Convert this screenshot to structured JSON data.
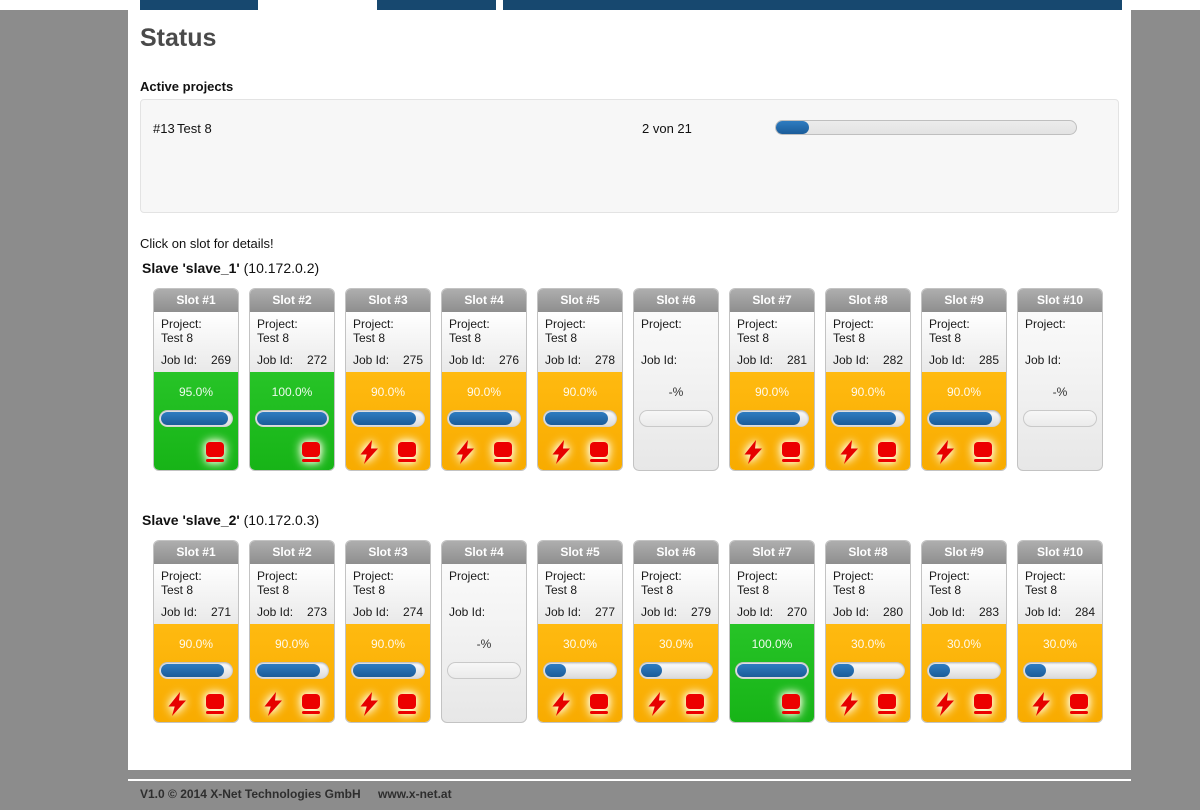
{
  "page": {
    "title": "Status"
  },
  "active_projects": {
    "heading": "Active projects",
    "row": {
      "id": "#13",
      "name": "Test 8",
      "count_label": "2 von 21",
      "progress_pct": 11
    }
  },
  "hint": "Click on slot for details!",
  "labels": {
    "project": "Project:",
    "job": "Job Id:"
  },
  "slaves": [
    {
      "name": "Slave 'slave_1'",
      "ip": "(10.172.0.2)",
      "slots": [
        {
          "label": "Slot #1",
          "project": "Test 8",
          "job_id": "269",
          "percent": "95.0%",
          "pct": 95,
          "state": "done"
        },
        {
          "label": "Slot #2",
          "project": "Test 8",
          "job_id": "272",
          "percent": "100.0%",
          "pct": 100,
          "state": "done"
        },
        {
          "label": "Slot #3",
          "project": "Test 8",
          "job_id": "275",
          "percent": "90.0%",
          "pct": 90,
          "state": "running"
        },
        {
          "label": "Slot #4",
          "project": "Test 8",
          "job_id": "276",
          "percent": "90.0%",
          "pct": 90,
          "state": "running"
        },
        {
          "label": "Slot #5",
          "project": "Test 8",
          "job_id": "278",
          "percent": "90.0%",
          "pct": 90,
          "state": "running"
        },
        {
          "label": "Slot #6",
          "project": "",
          "job_id": "",
          "percent": "-%",
          "pct": 0,
          "state": "empty"
        },
        {
          "label": "Slot #7",
          "project": "Test 8",
          "job_id": "281",
          "percent": "90.0%",
          "pct": 90,
          "state": "running"
        },
        {
          "label": "Slot #8",
          "project": "Test 8",
          "job_id": "282",
          "percent": "90.0%",
          "pct": 90,
          "state": "running"
        },
        {
          "label": "Slot #9",
          "project": "Test 8",
          "job_id": "285",
          "percent": "90.0%",
          "pct": 90,
          "state": "running"
        },
        {
          "label": "Slot #10",
          "project": "",
          "job_id": "",
          "percent": "-%",
          "pct": 0,
          "state": "empty"
        }
      ]
    },
    {
      "name": "Slave 'slave_2'",
      "ip": "(10.172.0.3)",
      "slots": [
        {
          "label": "Slot #1",
          "project": "Test 8",
          "job_id": "271",
          "percent": "90.0%",
          "pct": 90,
          "state": "running"
        },
        {
          "label": "Slot #2",
          "project": "Test 8",
          "job_id": "273",
          "percent": "90.0%",
          "pct": 90,
          "state": "running"
        },
        {
          "label": "Slot #3",
          "project": "Test 8",
          "job_id": "274",
          "percent": "90.0%",
          "pct": 90,
          "state": "running"
        },
        {
          "label": "Slot #4",
          "project": "",
          "job_id": "",
          "percent": "-%",
          "pct": 0,
          "state": "empty"
        },
        {
          "label": "Slot #5",
          "project": "Test 8",
          "job_id": "277",
          "percent": "30.0%",
          "pct": 30,
          "state": "running"
        },
        {
          "label": "Slot #6",
          "project": "Test 8",
          "job_id": "279",
          "percent": "30.0%",
          "pct": 30,
          "state": "running"
        },
        {
          "label": "Slot #7",
          "project": "Test 8",
          "job_id": "270",
          "percent": "100.0%",
          "pct": 100,
          "state": "done"
        },
        {
          "label": "Slot #8",
          "project": "Test 8",
          "job_id": "280",
          "percent": "30.0%",
          "pct": 30,
          "state": "running"
        },
        {
          "label": "Slot #9",
          "project": "Test 8",
          "job_id": "283",
          "percent": "30.0%",
          "pct": 30,
          "state": "running"
        },
        {
          "label": "Slot #10",
          "project": "Test 8",
          "job_id": "284",
          "percent": "30.0%",
          "pct": 30,
          "state": "running"
        }
      ]
    }
  ],
  "footer": {
    "copyright": "V1.0 © 2014 X-Net Technologies GmbH",
    "website": "www.x-net.at"
  },
  "colors": {
    "nav": "#17486f",
    "running": "#f8ab00",
    "done": "#1fbe1f",
    "bar_blue": "#1e68a8"
  }
}
